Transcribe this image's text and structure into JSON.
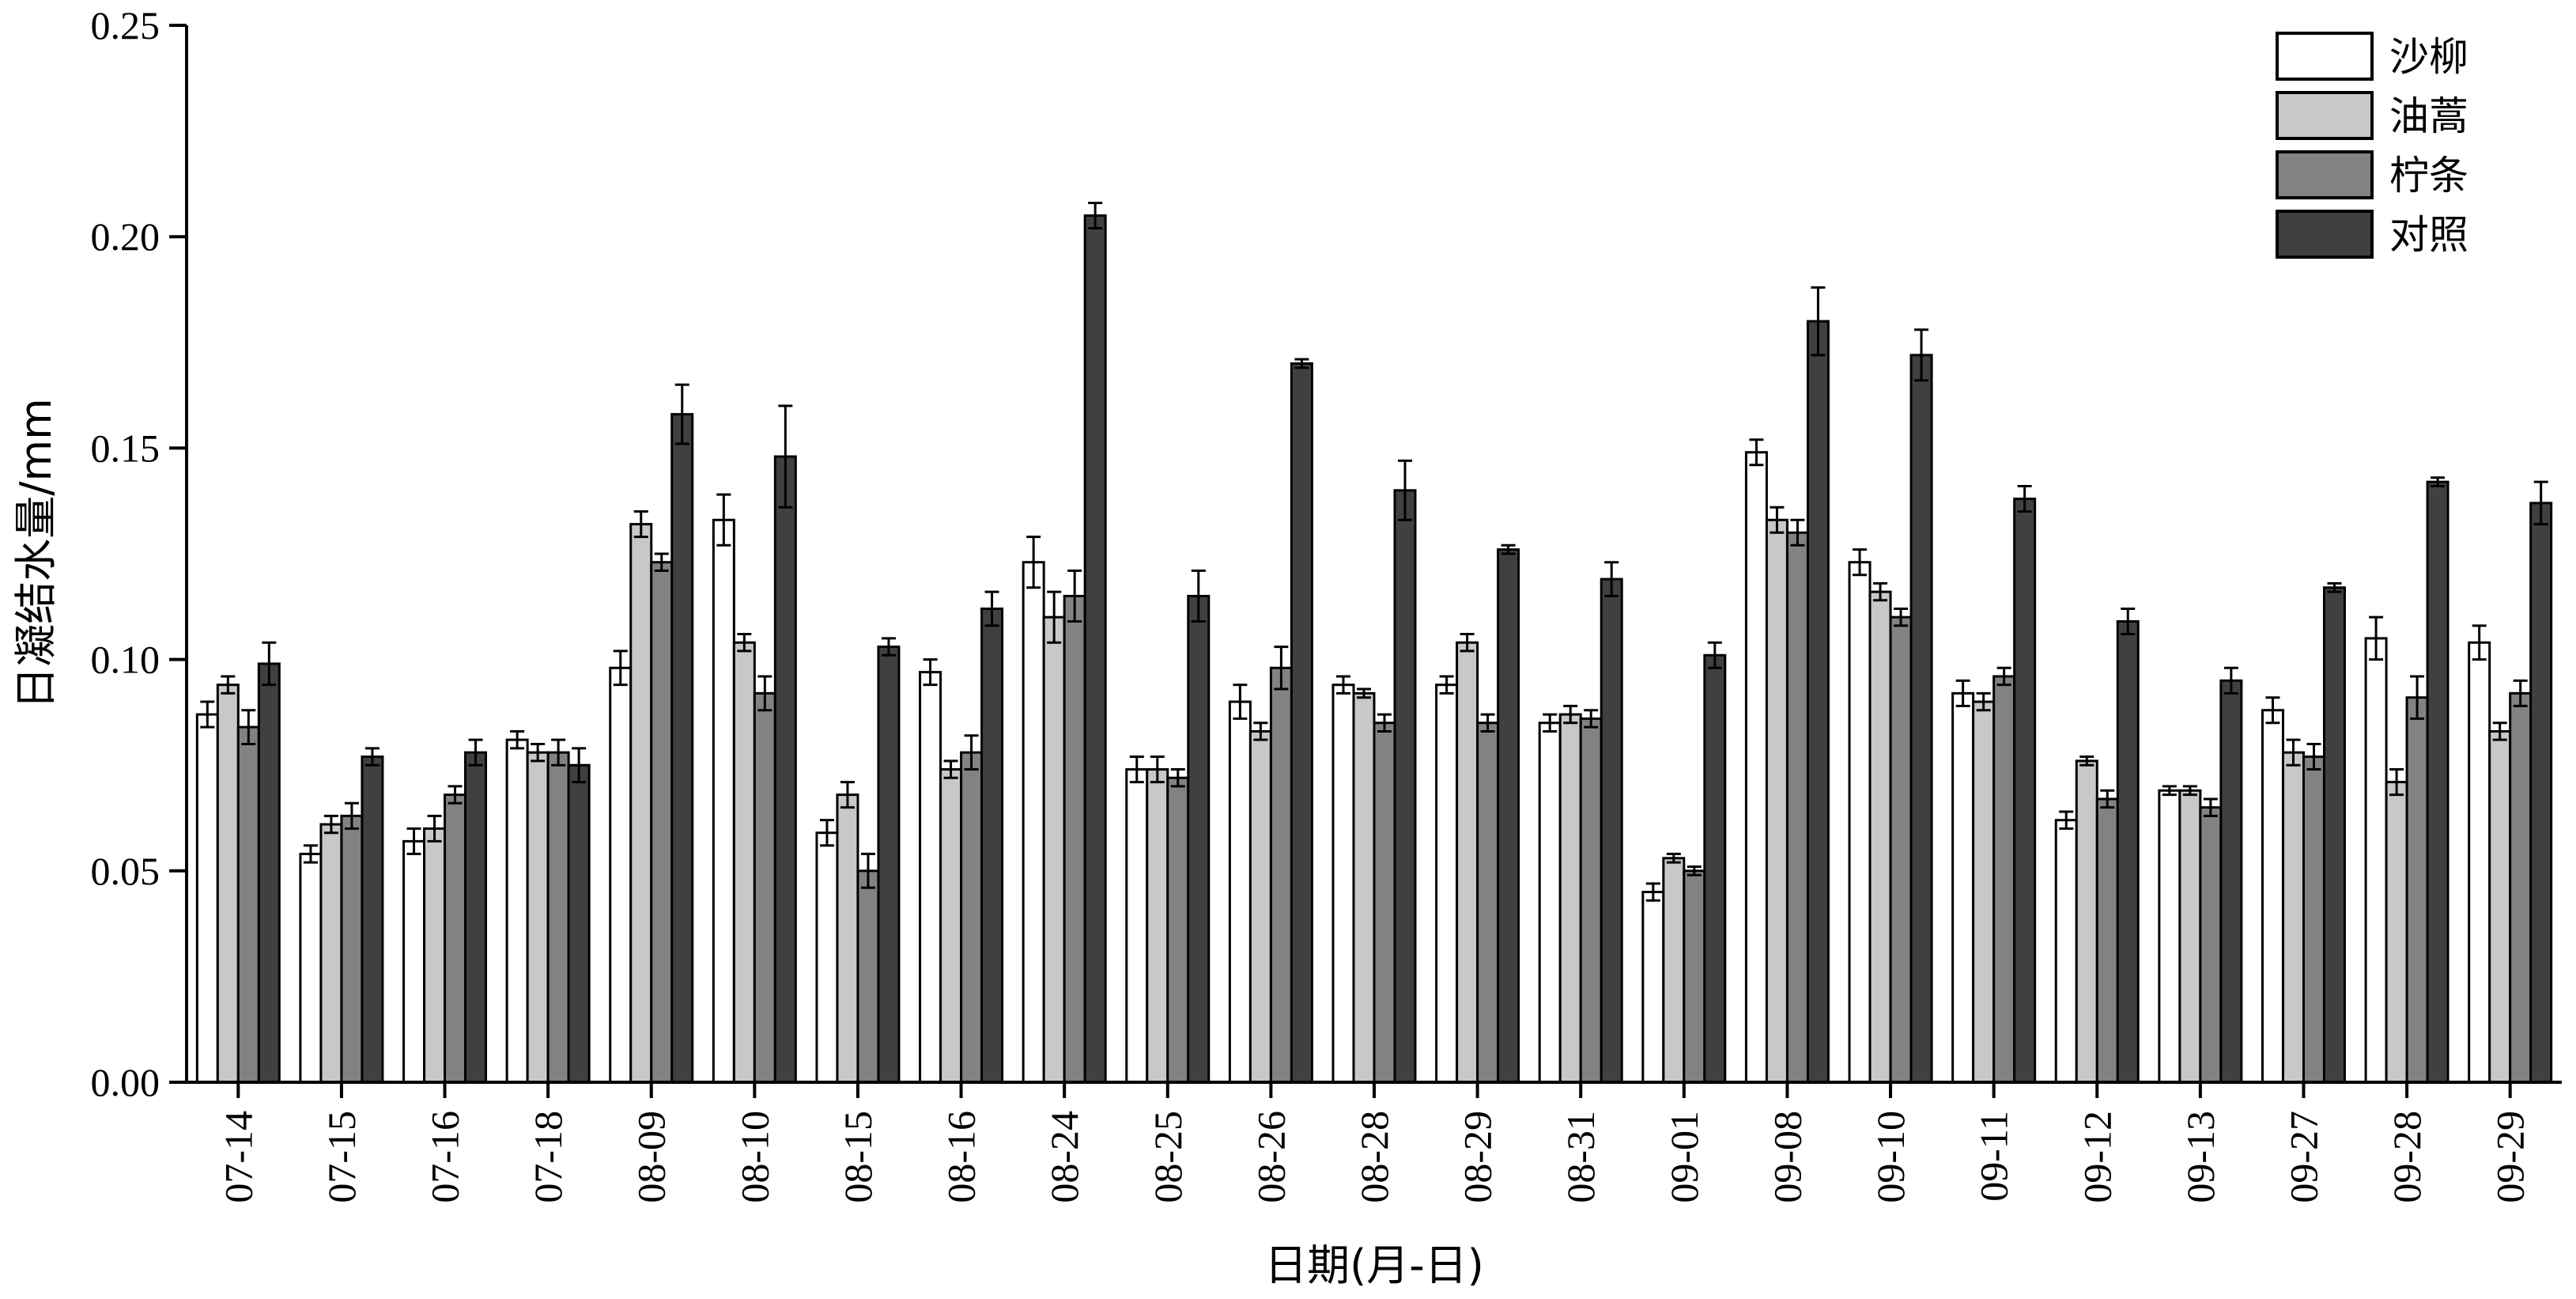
{
  "chart_data": {
    "type": "bar",
    "title": "",
    "xlabel": "日期(月-日)",
    "ylabel": "日凝结水量/mm",
    "ylim": [
      0,
      0.25
    ],
    "yticks": [
      "0.00",
      "0.05",
      "0.10",
      "0.15",
      "0.20",
      "0.25"
    ],
    "grid": false,
    "legend_position": "top-right",
    "categories": [
      "07-14",
      "07-15",
      "07-16",
      "07-18",
      "08-09",
      "08-10",
      "08-15",
      "08-16",
      "08-24",
      "08-25",
      "08-26",
      "08-28",
      "08-29",
      "08-31",
      "09-01",
      "09-08",
      "09-10",
      "09-11",
      "09-12",
      "09-13",
      "09-27",
      "09-28",
      "09-29"
    ],
    "series": [
      {
        "name": "沙柳",
        "color": "#ffffff",
        "values": [
          0.087,
          0.054,
          0.057,
          0.081,
          0.098,
          0.133,
          0.059,
          0.097,
          0.123,
          0.074,
          0.09,
          0.094,
          0.094,
          0.085,
          0.045,
          0.149,
          0.123,
          0.092,
          0.062,
          0.069,
          0.088,
          0.105,
          0.104
        ],
        "errors": [
          0.003,
          0.002,
          0.003,
          0.002,
          0.004,
          0.006,
          0.003,
          0.003,
          0.006,
          0.003,
          0.004,
          0.002,
          0.002,
          0.002,
          0.002,
          0.003,
          0.003,
          0.003,
          0.002,
          0.001,
          0.003,
          0.005,
          0.004
        ]
      },
      {
        "name": "油蒿",
        "color": "#c8c8c8",
        "values": [
          0.094,
          0.061,
          0.06,
          0.078,
          0.132,
          0.104,
          0.068,
          0.074,
          0.11,
          0.074,
          0.083,
          0.092,
          0.104,
          0.087,
          0.053,
          0.133,
          0.116,
          0.09,
          0.076,
          0.069,
          0.078,
          0.071,
          0.083
        ],
        "errors": [
          0.002,
          0.002,
          0.003,
          0.002,
          0.003,
          0.002,
          0.003,
          0.002,
          0.006,
          0.003,
          0.002,
          0.001,
          0.002,
          0.002,
          0.001,
          0.003,
          0.002,
          0.002,
          0.001,
          0.001,
          0.003,
          0.003,
          0.002
        ]
      },
      {
        "name": "柠条",
        "color": "#828282",
        "values": [
          0.084,
          0.063,
          0.068,
          0.078,
          0.123,
          0.092,
          0.05,
          0.078,
          0.115,
          0.072,
          0.098,
          0.085,
          0.085,
          0.086,
          0.05,
          0.13,
          0.11,
          0.096,
          0.067,
          0.065,
          0.077,
          0.091,
          0.092
        ],
        "errors": [
          0.004,
          0.003,
          0.002,
          0.003,
          0.002,
          0.004,
          0.004,
          0.004,
          0.006,
          0.002,
          0.005,
          0.002,
          0.002,
          0.002,
          0.001,
          0.003,
          0.002,
          0.002,
          0.002,
          0.002,
          0.003,
          0.005,
          0.003
        ]
      },
      {
        "name": "对照",
        "color": "#404040",
        "values": [
          0.099,
          0.077,
          0.078,
          0.075,
          0.158,
          0.148,
          0.103,
          0.112,
          0.205,
          0.115,
          0.17,
          0.14,
          0.126,
          0.119,
          0.101,
          0.18,
          0.172,
          0.138,
          0.109,
          0.095,
          0.117,
          0.142,
          0.137
        ],
        "errors": [
          0.005,
          0.002,
          0.003,
          0.004,
          0.007,
          0.012,
          0.002,
          0.004,
          0.003,
          0.006,
          0.001,
          0.007,
          0.001,
          0.004,
          0.003,
          0.008,
          0.006,
          0.003,
          0.003,
          0.003,
          0.001,
          0.001,
          0.005
        ]
      }
    ]
  }
}
